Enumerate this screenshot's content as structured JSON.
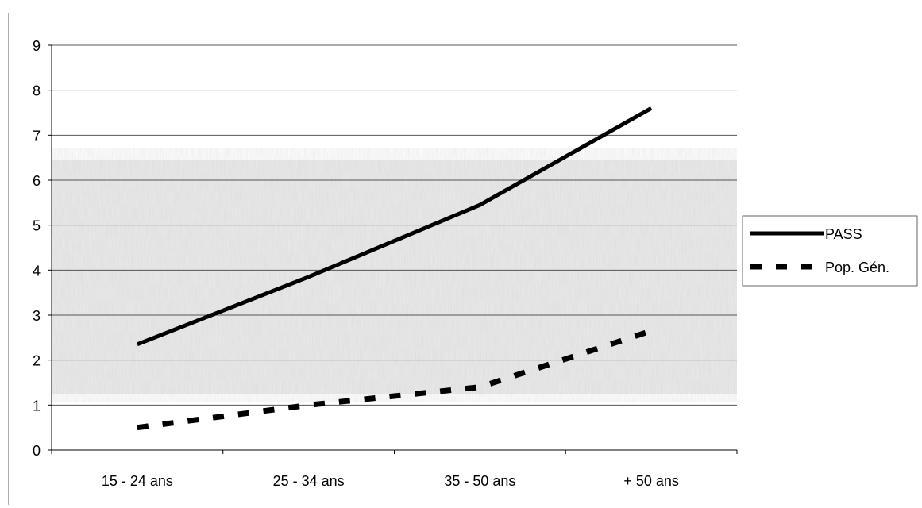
{
  "chart_data": {
    "type": "line",
    "categories": [
      "15 - 24 ans",
      "25 - 34 ans",
      "35 - 50 ans",
      "+ 50 ans"
    ],
    "ylim": [
      0,
      9
    ],
    "yticks": [
      "0",
      "1",
      "2",
      "3",
      "4",
      "5",
      "6",
      "7",
      "8",
      "9"
    ],
    "grid": true,
    "legend_position": "right",
    "series": [
      {
        "name": "PASS",
        "values": [
          2.35,
          3.85,
          5.45,
          7.6
        ],
        "color": "#000000",
        "style": "solid"
      },
      {
        "name": "Pop. Gén.",
        "values": [
          0.5,
          1.0,
          1.4,
          2.65
        ],
        "color": "#000000",
        "style": "dashed"
      }
    ]
  }
}
